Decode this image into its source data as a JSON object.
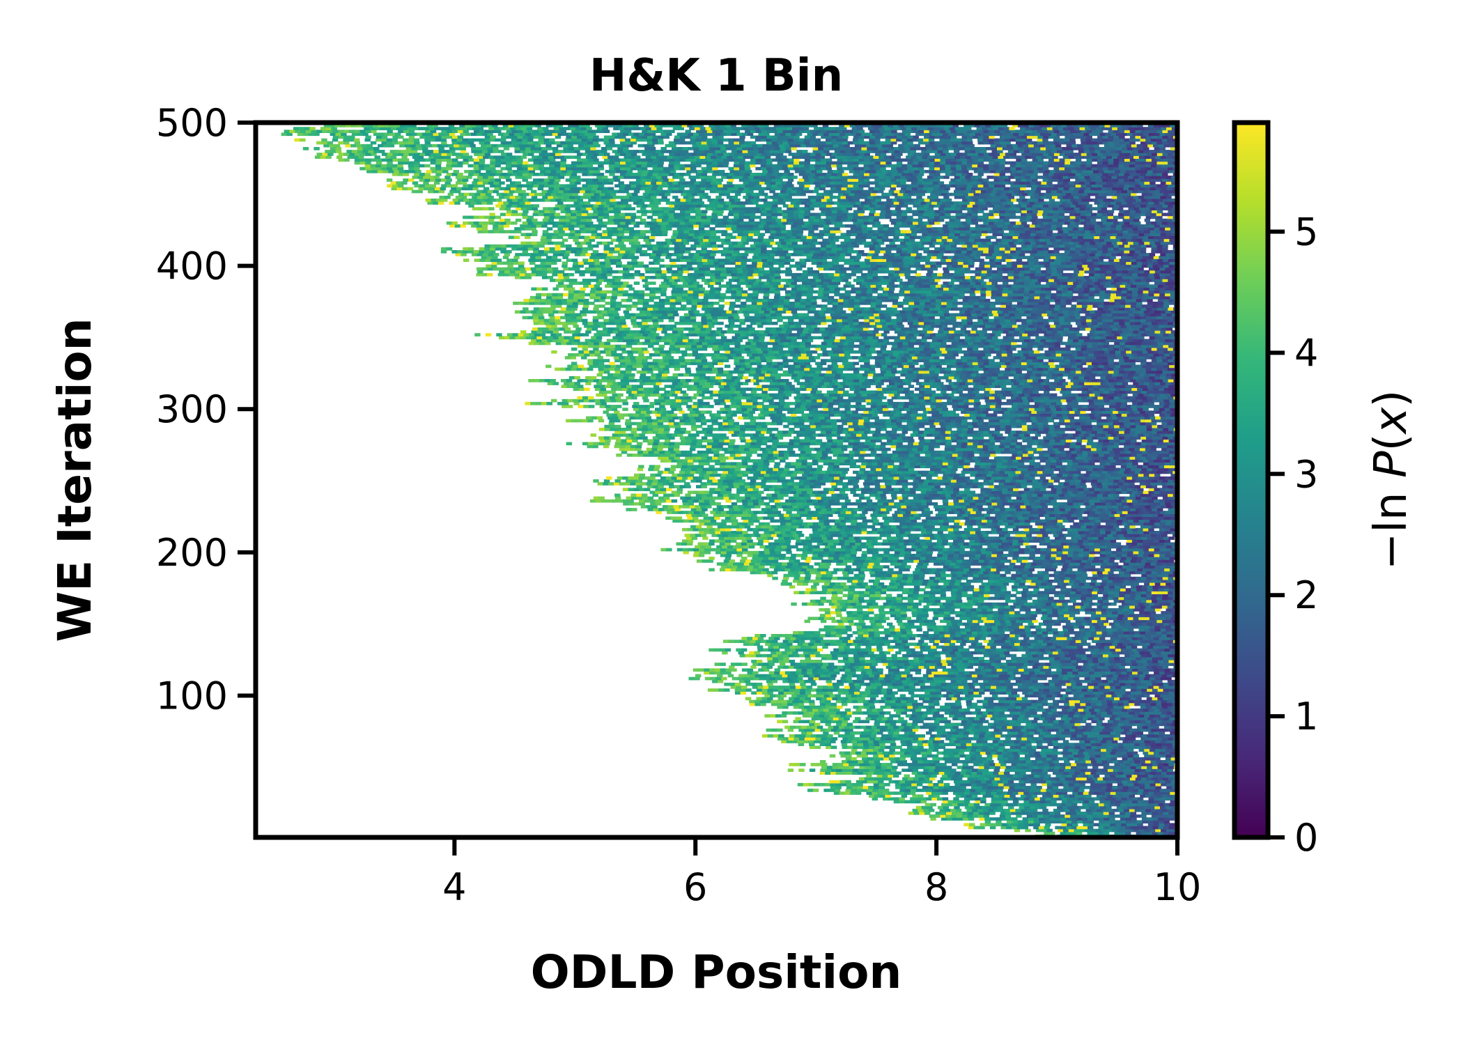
{
  "chart_data": {
    "type": "heatmap",
    "title": "H&K 1 Bin",
    "xlabel": "ODLD Position",
    "ylabel": "WE Iteration",
    "xlim": [
      2.35,
      10
    ],
    "ylim": [
      1,
      500
    ],
    "x_ticks": [
      4,
      6,
      8,
      10
    ],
    "x_tick_labels": [
      "4",
      "6",
      "8",
      "10"
    ],
    "y_ticks": [
      100,
      200,
      300,
      400,
      500
    ],
    "y_tick_labels": [
      "100",
      "200",
      "300",
      "400",
      "500"
    ],
    "colorbar": {
      "label": "−ln P(x)",
      "label_prefix": "−ln ",
      "label_var": "P",
      "label_open": "(",
      "label_arg": "x",
      "label_close": ")",
      "range": [
        0,
        5.9
      ],
      "ticks": [
        0,
        1,
        2,
        3,
        4,
        5
      ],
      "tick_labels": [
        "0",
        "1",
        "2",
        "3",
        "4",
        "5"
      ],
      "colormap": "viridis"
    },
    "grid": false,
    "legend": "none",
    "frontier": {
      "description_values": "leftmost sampled ODLD position per WE iteration (empty/white to the left)",
      "iterations": [
        1,
        10,
        25,
        40,
        55,
        70,
        85,
        100,
        115,
        130,
        150,
        170,
        190,
        200,
        215,
        240,
        260,
        280,
        300,
        320,
        340,
        360,
        380,
        400,
        420,
        440,
        460,
        480,
        500
      ],
      "min_position": [
        8.8,
        8.3,
        7.4,
        7.1,
        7.0,
        6.9,
        6.7,
        6.3,
        6.2,
        6.5,
        6.8,
        6.6,
        6.2,
        5.8,
        5.8,
        5.4,
        5.3,
        5.1,
        4.7,
        4.8,
        4.6,
        4.4,
        4.8,
        4.3,
        4.4,
        4.0,
        3.5,
        2.8,
        2.5
      ]
    },
    "value_trend": {
      "description_values": "typical -ln P(x): high (~4.5) near the frontier, decreasing (~1.5) toward position 10",
      "near_frontier": 4.5,
      "at_right_edge": 1.5
    }
  }
}
